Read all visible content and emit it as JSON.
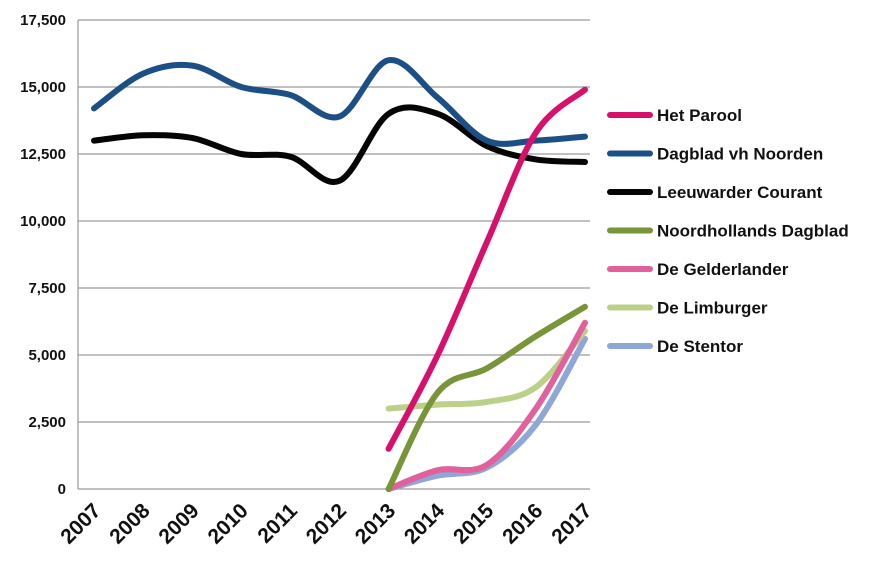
{
  "chart_data": {
    "type": "line",
    "title": "",
    "xlabel": "",
    "ylabel": "",
    "x": [
      "2007",
      "2008",
      "2009",
      "2010",
      "2011",
      "2012",
      "2013",
      "2014",
      "2015",
      "2016",
      "2017"
    ],
    "ylim": [
      0,
      17500
    ],
    "yticks": [
      0,
      2500,
      5000,
      7500,
      10000,
      12500,
      15000,
      17500
    ],
    "ytick_labels": [
      "0",
      "2,500",
      "5,000",
      "7,500",
      "10,000",
      "12,500",
      "15,000",
      "17,500"
    ],
    "grid": true,
    "legend_position": "right",
    "series": [
      {
        "name": "Het Parool",
        "color": "#d6106b",
        "values": [
          null,
          null,
          null,
          null,
          null,
          null,
          1500,
          5000,
          9200,
          13300,
          14900
        ]
      },
      {
        "name": "Dagblad vh Noorden",
        "color": "#1c4f86",
        "values": [
          14200,
          15500,
          15800,
          15000,
          14700,
          13900,
          16000,
          14600,
          13000,
          13000,
          13150
        ]
      },
      {
        "name": "Leeuwarder Courant",
        "color": "#050505",
        "values": [
          13000,
          13200,
          13100,
          12500,
          12400,
          11500,
          14000,
          14000,
          12800,
          12300,
          12200
        ]
      },
      {
        "name": "Noordhollands Dagblad",
        "color": "#79953a",
        "values": [
          null,
          null,
          null,
          null,
          null,
          null,
          0,
          3600,
          4500,
          5700,
          6800
        ]
      },
      {
        "name": "De Gelderlander",
        "color": "#e2609b",
        "values": [
          null,
          null,
          null,
          null,
          null,
          null,
          0,
          700,
          900,
          3000,
          6200
        ]
      },
      {
        "name": "De Limburger",
        "color": "#bcd08a",
        "values": [
          null,
          null,
          null,
          null,
          null,
          null,
          3000,
          3150,
          3250,
          3800,
          5900
        ]
      },
      {
        "name": "De Stentor",
        "color": "#8ea7d5",
        "values": [
          null,
          null,
          null,
          null,
          null,
          null,
          0,
          500,
          800,
          2400,
          5600
        ]
      }
    ]
  }
}
